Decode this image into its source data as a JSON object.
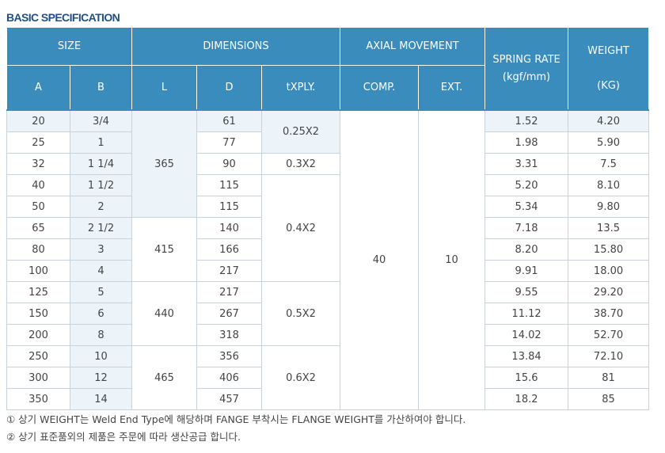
{
  "title": "BASIC SPECIFICATION",
  "headers": {
    "size": "SIZE",
    "dimensions": "DIMENSIONS",
    "axial": "AXIAL MOVEMENT",
    "spring": "SPRING RATE",
    "spring_unit": "(kgf/mm)",
    "weight": "WEIGHT",
    "weight_unit": "(KG)",
    "a": "A",
    "b": "B",
    "l": "L",
    "d": "D",
    "txply": "tXPLY.",
    "comp": "COMP.",
    "ext": "EXT."
  },
  "rows": [
    {
      "a": "20",
      "b": "3/4",
      "d": "61",
      "spring": "1.52",
      "weight": "4.20"
    },
    {
      "a": "25",
      "b": "1",
      "d": "77",
      "spring": "1.98",
      "weight": "5.90"
    },
    {
      "a": "32",
      "b": "1 1/4",
      "d": "90",
      "spring": "3.31",
      "weight": "7.5"
    },
    {
      "a": "40",
      "b": "1 1/2",
      "d": "115",
      "spring": "5.20",
      "weight": "8.10"
    },
    {
      "a": "50",
      "b": "2",
      "d": "115",
      "spring": "5.34",
      "weight": "9.80"
    },
    {
      "a": "65",
      "b": "2 1/2",
      "d": "140",
      "spring": "7.18",
      "weight": "13.5"
    },
    {
      "a": "80",
      "b": "3",
      "d": "166",
      "spring": "8.20",
      "weight": "15.80"
    },
    {
      "a": "100",
      "b": "4",
      "d": "217",
      "spring": "9.91",
      "weight": "18.00"
    },
    {
      "a": "125",
      "b": "5",
      "d": "217",
      "spring": "9.55",
      "weight": "29.20"
    },
    {
      "a": "150",
      "b": "6",
      "d": "267",
      "spring": "11.12",
      "weight": "38.70"
    },
    {
      "a": "200",
      "b": "8",
      "d": "318",
      "spring": "14.02",
      "weight": "52.70"
    },
    {
      "a": "250",
      "b": "10",
      "d": "356",
      "spring": "13.84",
      "weight": "72.10"
    },
    {
      "a": "300",
      "b": "12",
      "d": "406",
      "spring": "15.6",
      "weight": "81"
    },
    {
      "a": "350",
      "b": "14",
      "d": "457",
      "spring": "18.2",
      "weight": "85"
    }
  ],
  "l_groups": [
    "365",
    "415",
    "440",
    "465"
  ],
  "ply_groups": [
    "0.25X2",
    "0.3X2",
    "0.4X2",
    "0.5X2",
    "0.6X2"
  ],
  "axial": {
    "comp": "40",
    "ext": "10"
  },
  "notes": [
    "① 상기 WEIGHT는 Weld End Type에 해당하며 FANGE 부착시는 FLANGE WEIGHT를 가산하여야 합니다.",
    "② 상기 표준품외의 제품은 주문에 따라 생산공급 합니다."
  ]
}
